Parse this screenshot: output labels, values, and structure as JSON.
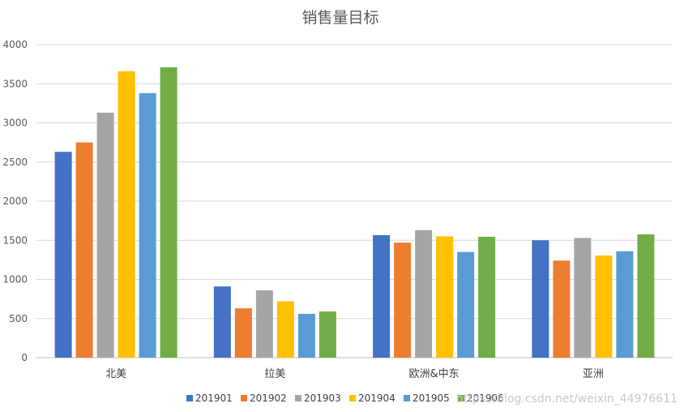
{
  "chart_data": {
    "type": "bar",
    "title": "销售量目标",
    "categories": [
      "北美",
      "拉美",
      "欧洲&中东",
      "亚洲"
    ],
    "series": [
      {
        "name": "201901",
        "values": [
          2630,
          910,
          1565,
          1500
        ]
      },
      {
        "name": "201902",
        "values": [
          2750,
          630,
          1470,
          1240
        ]
      },
      {
        "name": "201903",
        "values": [
          3130,
          860,
          1630,
          1530
        ]
      },
      {
        "name": "201904",
        "values": [
          3660,
          720,
          1550,
          1305
        ]
      },
      {
        "name": "201905",
        "values": [
          3380,
          560,
          1350,
          1360
        ]
      },
      {
        "name": "201906",
        "values": [
          3710,
          590,
          1545,
          1575
        ]
      }
    ],
    "yticks": [
      "0",
      "500",
      "1000",
      "1500",
      "2000",
      "2500",
      "3000",
      "3500",
      "4000"
    ],
    "ylim": [
      0,
      4000
    ],
    "xlabel": "",
    "ylabel": "",
    "grid": true,
    "legend_position": "bottom",
    "colors": [
      "#4472C4",
      "#ED7D31",
      "#A5A5A5",
      "#FFC000",
      "#5B9BD5",
      "#70AD47"
    ]
  },
  "watermark": "https://blog.csdn.net/weixin_44976611"
}
